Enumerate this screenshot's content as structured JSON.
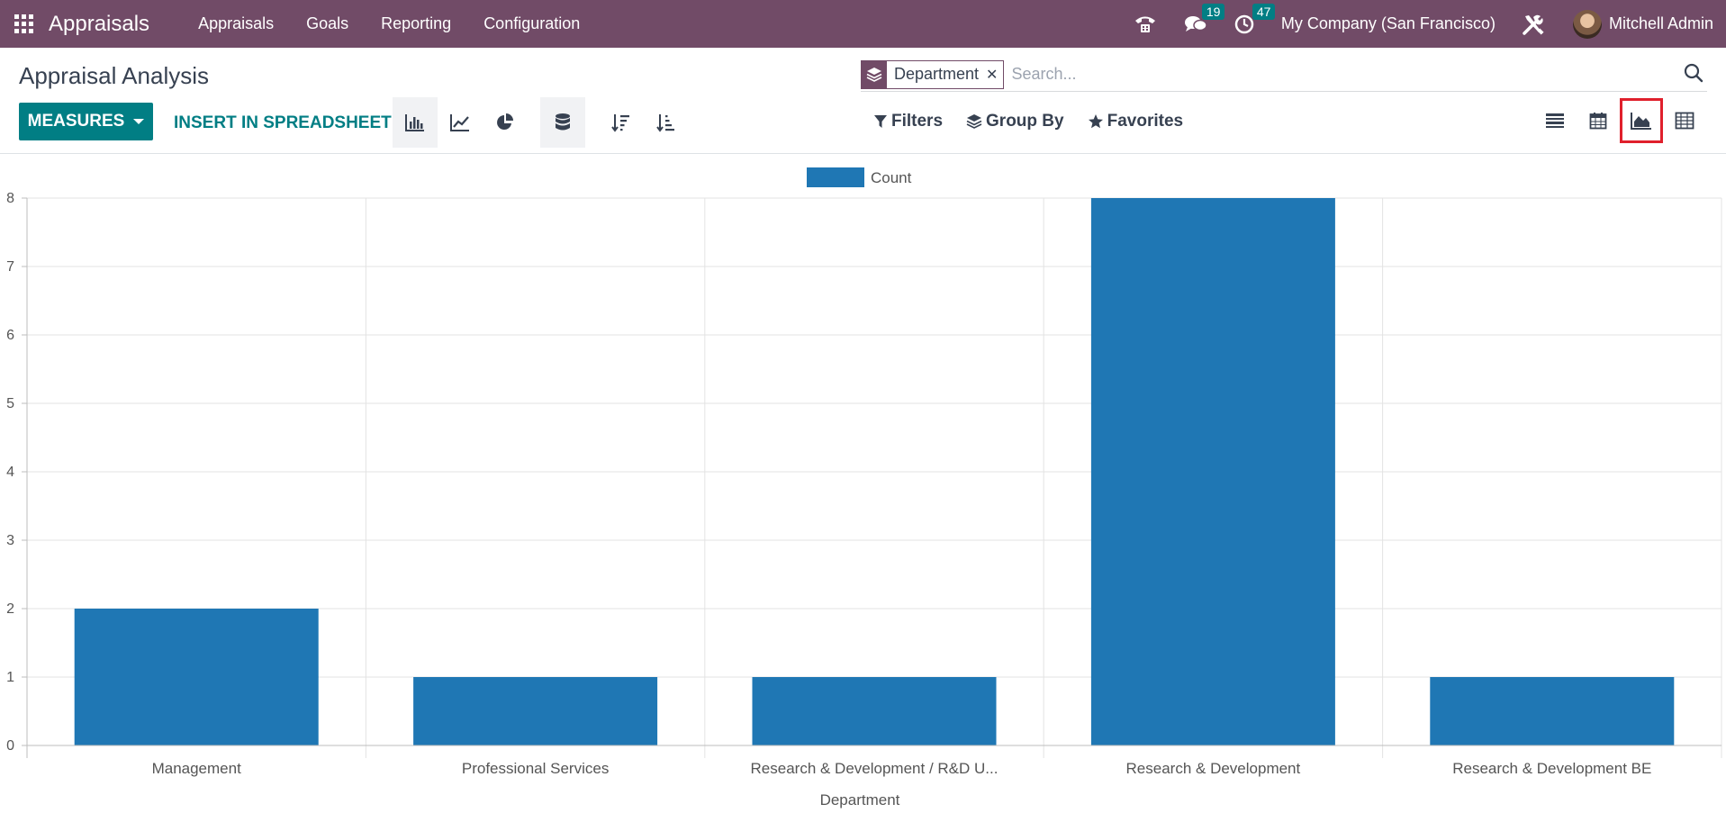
{
  "navbar": {
    "brand": "Appraisals",
    "menu": [
      {
        "label": "Appraisals"
      },
      {
        "label": "Goals"
      },
      {
        "label": "Reporting"
      },
      {
        "label": "Configuration"
      }
    ],
    "messages_count": "19",
    "activities_count": "47",
    "company": "My Company (San Francisco)",
    "user": "Mitchell Admin"
  },
  "page": {
    "title": "Appraisal Analysis"
  },
  "search": {
    "facet_label": "Department",
    "placeholder": "Search..."
  },
  "toolbar": {
    "measures_label": "MEASURES",
    "insert_label": "INSERT IN SPREADSHEET",
    "filters_label": "Filters",
    "group_by_label": "Group By",
    "favorites_label": "Favorites"
  },
  "colors": {
    "navbar": "#714b67",
    "primary": "#017e84",
    "bar": "#1f77b4",
    "highlight": "#e0202c"
  },
  "chart_data": {
    "type": "bar",
    "categories": [
      "Management",
      "Professional Services",
      "Research & Development / R&D U...",
      "Research & Development",
      "Research & Development BE"
    ],
    "series": [
      {
        "name": "Count",
        "values": [
          2,
          1,
          1,
          8,
          1
        ]
      }
    ],
    "xlabel": "Department",
    "ylabel": "",
    "ylim": [
      0,
      8
    ],
    "yticks": [
      0,
      1,
      2,
      3,
      4,
      5,
      6,
      7,
      8
    ],
    "grid": true,
    "legend": "top-center"
  }
}
